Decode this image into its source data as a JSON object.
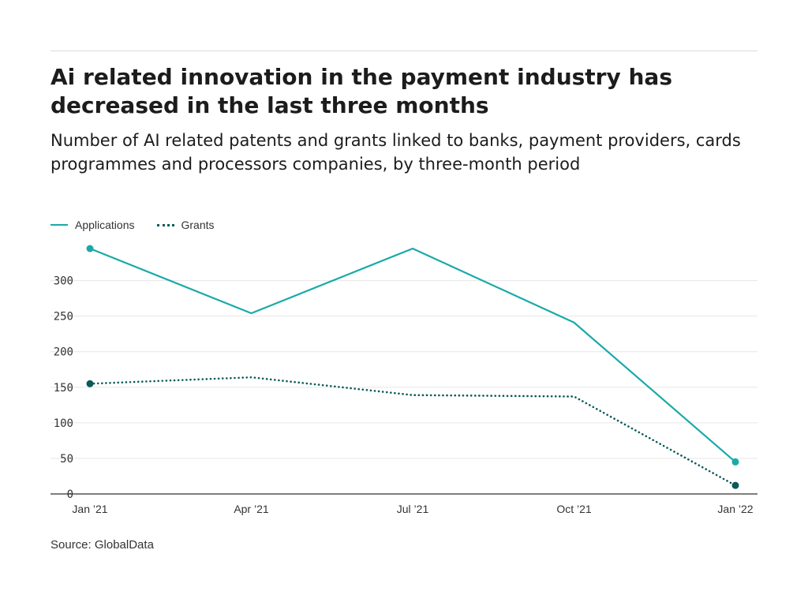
{
  "header": {
    "title": "Ai related innovation in the payment industry has decreased in the last three months",
    "subtitle": "Number of AI related patents and grants linked to banks, payment providers, cards programmes and processors companies, by three-month period"
  },
  "footer": {
    "source": "Source: GlobalData"
  },
  "colors": {
    "applications": "#1aa9a9",
    "grants": "#0b5a5a",
    "grid": "#e6e6e6",
    "axis": "#333333"
  },
  "chart_data": {
    "type": "line",
    "title": "Ai related innovation in the payment industry has decreased in the last three months",
    "subtitle": "Number of AI related patents and grants linked to banks, payment providers, cards programmes and processors companies, by three-month period",
    "xlabel": "",
    "ylabel": "",
    "categories": [
      "Jan ’21",
      "Apr ’21",
      "Jul ’21",
      "Oct ’21",
      "Jan ’22"
    ],
    "series": [
      {
        "name": "Applications",
        "style": "solid",
        "values": [
          345,
          254,
          345,
          241,
          45
        ],
        "markers": [
          true,
          false,
          false,
          false,
          true
        ]
      },
      {
        "name": "Grants",
        "style": "dotted",
        "values": [
          155,
          164,
          139,
          137,
          12
        ],
        "markers": [
          true,
          false,
          false,
          false,
          true
        ]
      }
    ],
    "ylim": [
      0,
      345
    ],
    "yticks": [
      0,
      50,
      100,
      150,
      200,
      250,
      300
    ],
    "grid": true,
    "legend_position": "top-left"
  }
}
